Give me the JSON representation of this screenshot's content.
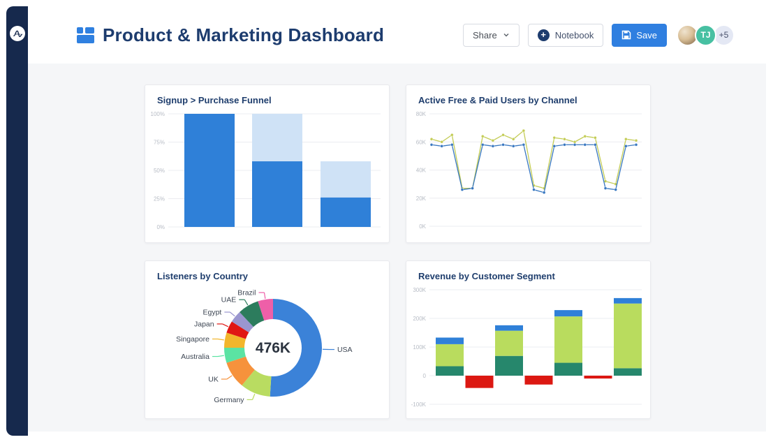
{
  "sidebar": {
    "logo_icon": "amplitude-wave-logo"
  },
  "header": {
    "title": "Product & Marketing Dashboard",
    "share_label": "Share",
    "notebook_label": "Notebook",
    "save_label": "Save",
    "avatar_initials": "TJ",
    "avatar_overflow": "+5"
  },
  "colors": {
    "sidebar_navy": "#16294d",
    "title_navy": "#1d3c6e",
    "accent_blue": "#2f80d8",
    "save_blue": "#2f7fe0",
    "content_bg": "#f5f6f8",
    "gridline": "#ebecf0",
    "tick_label": "#b7bcc5",
    "avatar_teal": "#47c0a2"
  },
  "chart_data": [
    {
      "type": "bar",
      "subtype": "funnel",
      "title": "Signup > Purchase Funnel",
      "yticks": [
        "100%",
        "75%",
        "50%",
        "25%",
        "0%"
      ],
      "ytick_values": [
        100,
        75,
        50,
        25,
        0
      ],
      "ylim": [
        0,
        100
      ],
      "colors": {
        "previous_step": "#cfe2f6",
        "converted": "#2f80d8"
      },
      "steps": [
        {
          "total": 100,
          "converted": 100
        },
        {
          "total": 100,
          "converted": 58
        },
        {
          "total": 58,
          "converted": 26
        }
      ]
    },
    {
      "type": "line",
      "title": "Active Free & Paid Users by Channel",
      "yticks": [
        "80K",
        "60K",
        "40K",
        "20K",
        "0K"
      ],
      "ytick_values": [
        80,
        60,
        40,
        20,
        0
      ],
      "ylim": [
        0,
        80
      ],
      "grid": true,
      "legend": "none",
      "series": [
        {
          "name": "yellow-green-line",
          "color": "#c3cc55",
          "values": [
            62,
            60,
            65,
            27,
            27,
            64,
            61,
            65,
            62,
            68,
            29,
            27,
            63,
            62,
            60,
            64,
            63,
            32,
            30,
            62,
            61
          ]
        },
        {
          "name": "blue-line",
          "color": "#3877c0",
          "values": [
            58,
            57,
            58,
            26,
            27,
            58,
            57,
            58,
            57,
            58,
            26,
            24,
            57,
            58,
            58,
            58,
            58,
            27,
            26,
            57,
            58
          ]
        }
      ]
    },
    {
      "type": "pie",
      "subtype": "donut",
      "title": "Listeners by Country",
      "center_label": "476K",
      "slices": [
        {
          "label": "USA",
          "value": 51,
          "color": "#3b82d8"
        },
        {
          "label": "Germany",
          "value": 10,
          "color": "#b9dc61"
        },
        {
          "label": "UK",
          "value": 9,
          "color": "#f6923c"
        },
        {
          "label": "Australia",
          "value": 5,
          "color": "#5be3a3"
        },
        {
          "label": "Singapore",
          "value": 5,
          "color": "#f2b62c"
        },
        {
          "label": "Japan",
          "value": 4,
          "color": "#e01714"
        },
        {
          "label": "Egypt",
          "value": 4,
          "color": "#9a96cf"
        },
        {
          "label": "UAE",
          "value": 7,
          "color": "#2c7c5d"
        },
        {
          "label": "Brazil",
          "value": 5,
          "color": "#ee5fa8"
        }
      ]
    },
    {
      "type": "bar",
      "subtype": "stacked",
      "title": "Revenue by Customer Segment",
      "yticks": [
        "300K",
        "200K",
        "100K",
        "0",
        "-100K"
      ],
      "ytick_values": [
        300,
        200,
        100,
        0,
        -100
      ],
      "ylim": [
        -100,
        300
      ],
      "palette": {
        "teal": "#26876c",
        "green": "#b9dc5e",
        "blue": "#2f80d8",
        "red": "#dc1812"
      },
      "bars": [
        {
          "segments": [
            {
              "color": "teal",
              "value": 33
            },
            {
              "color": "green",
              "value": 77
            },
            {
              "color": "blue",
              "value": 23
            }
          ]
        },
        {
          "segments": [
            {
              "color": "red",
              "value": -43
            }
          ]
        },
        {
          "segments": [
            {
              "color": "teal",
              "value": 69
            },
            {
              "color": "green",
              "value": 88
            },
            {
              "color": "blue",
              "value": 19
            }
          ]
        },
        {
          "segments": [
            {
              "color": "red",
              "value": -31
            }
          ]
        },
        {
          "segments": [
            {
              "color": "teal",
              "value": 45
            },
            {
              "color": "green",
              "value": 162
            },
            {
              "color": "blue",
              "value": 22
            }
          ]
        },
        {
          "segments": [
            {
              "color": "red",
              "value": -10
            }
          ]
        },
        {
          "segments": [
            {
              "color": "teal",
              "value": 26
            },
            {
              "color": "green",
              "value": 226
            },
            {
              "color": "blue",
              "value": 19
            }
          ]
        }
      ]
    }
  ]
}
